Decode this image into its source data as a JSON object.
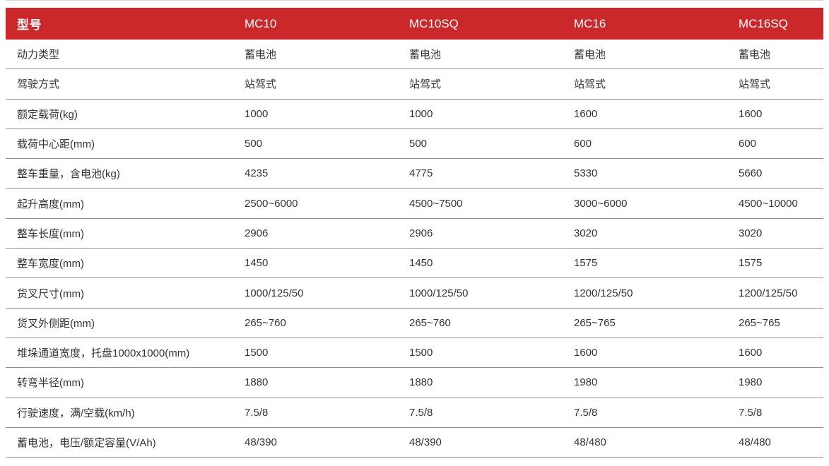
{
  "table": {
    "header": {
      "label": "型号",
      "models": [
        "MC10",
        "MC10SQ",
        "MC16",
        "MC16SQ"
      ]
    },
    "rows": [
      {
        "label": "动力类型",
        "values": [
          "蓄电池",
          "蓄电池",
          "蓄电池",
          "蓄电池"
        ]
      },
      {
        "label": "驾驶方式",
        "values": [
          "站驾式",
          "站驾式",
          "站驾式",
          "站驾式"
        ]
      },
      {
        "label": "额定载荷(kg)",
        "values": [
          "1000",
          "1000",
          "1600",
          "1600"
        ]
      },
      {
        "label": "载荷中心距(mm)",
        "values": [
          "500",
          "500",
          "600",
          "600"
        ]
      },
      {
        "label": "整车重量，含电池(kg)",
        "values": [
          "4235",
          "4775",
          "5330",
          "5660"
        ]
      },
      {
        "label": "起升高度(mm)",
        "values": [
          "2500~6000",
          "4500~7500",
          "3000~6000",
          "4500~10000"
        ]
      },
      {
        "label": "整车长度(mm)",
        "values": [
          "2906",
          "2906",
          "3020",
          "3020"
        ]
      },
      {
        "label": "整车宽度(mm)",
        "values": [
          "1450",
          "1450",
          "1575",
          "1575"
        ]
      },
      {
        "label": "货叉尺寸(mm)",
        "values": [
          "1000/125/50",
          "1000/125/50",
          "1200/125/50",
          "1200/125/50"
        ]
      },
      {
        "label": "货叉外侧距(mm)",
        "values": [
          "265~760",
          "265~760",
          "265~765",
          "265~765"
        ]
      },
      {
        "label": "堆垛通道宽度，托盘1000x1000(mm)",
        "values": [
          "1500",
          "1500",
          "1600",
          "1600"
        ]
      },
      {
        "label": "转弯半径(mm)",
        "values": [
          "1880",
          "1880",
          "1980",
          "1980"
        ]
      },
      {
        "label": "行驶速度，满/空载(km/h)",
        "values": [
          "7.5/8",
          "7.5/8",
          "7.5/8",
          "7.5/8"
        ]
      },
      {
        "label": "蓄电池，电压/额定容量(V/Ah)",
        "values": [
          "48/390",
          "48/390",
          "48/480",
          "48/480"
        ]
      }
    ],
    "colors": {
      "header_bg": "#cb282b",
      "header_text": "#ffffff",
      "row_text": "#333333",
      "divider": "#8f8f8f"
    }
  }
}
